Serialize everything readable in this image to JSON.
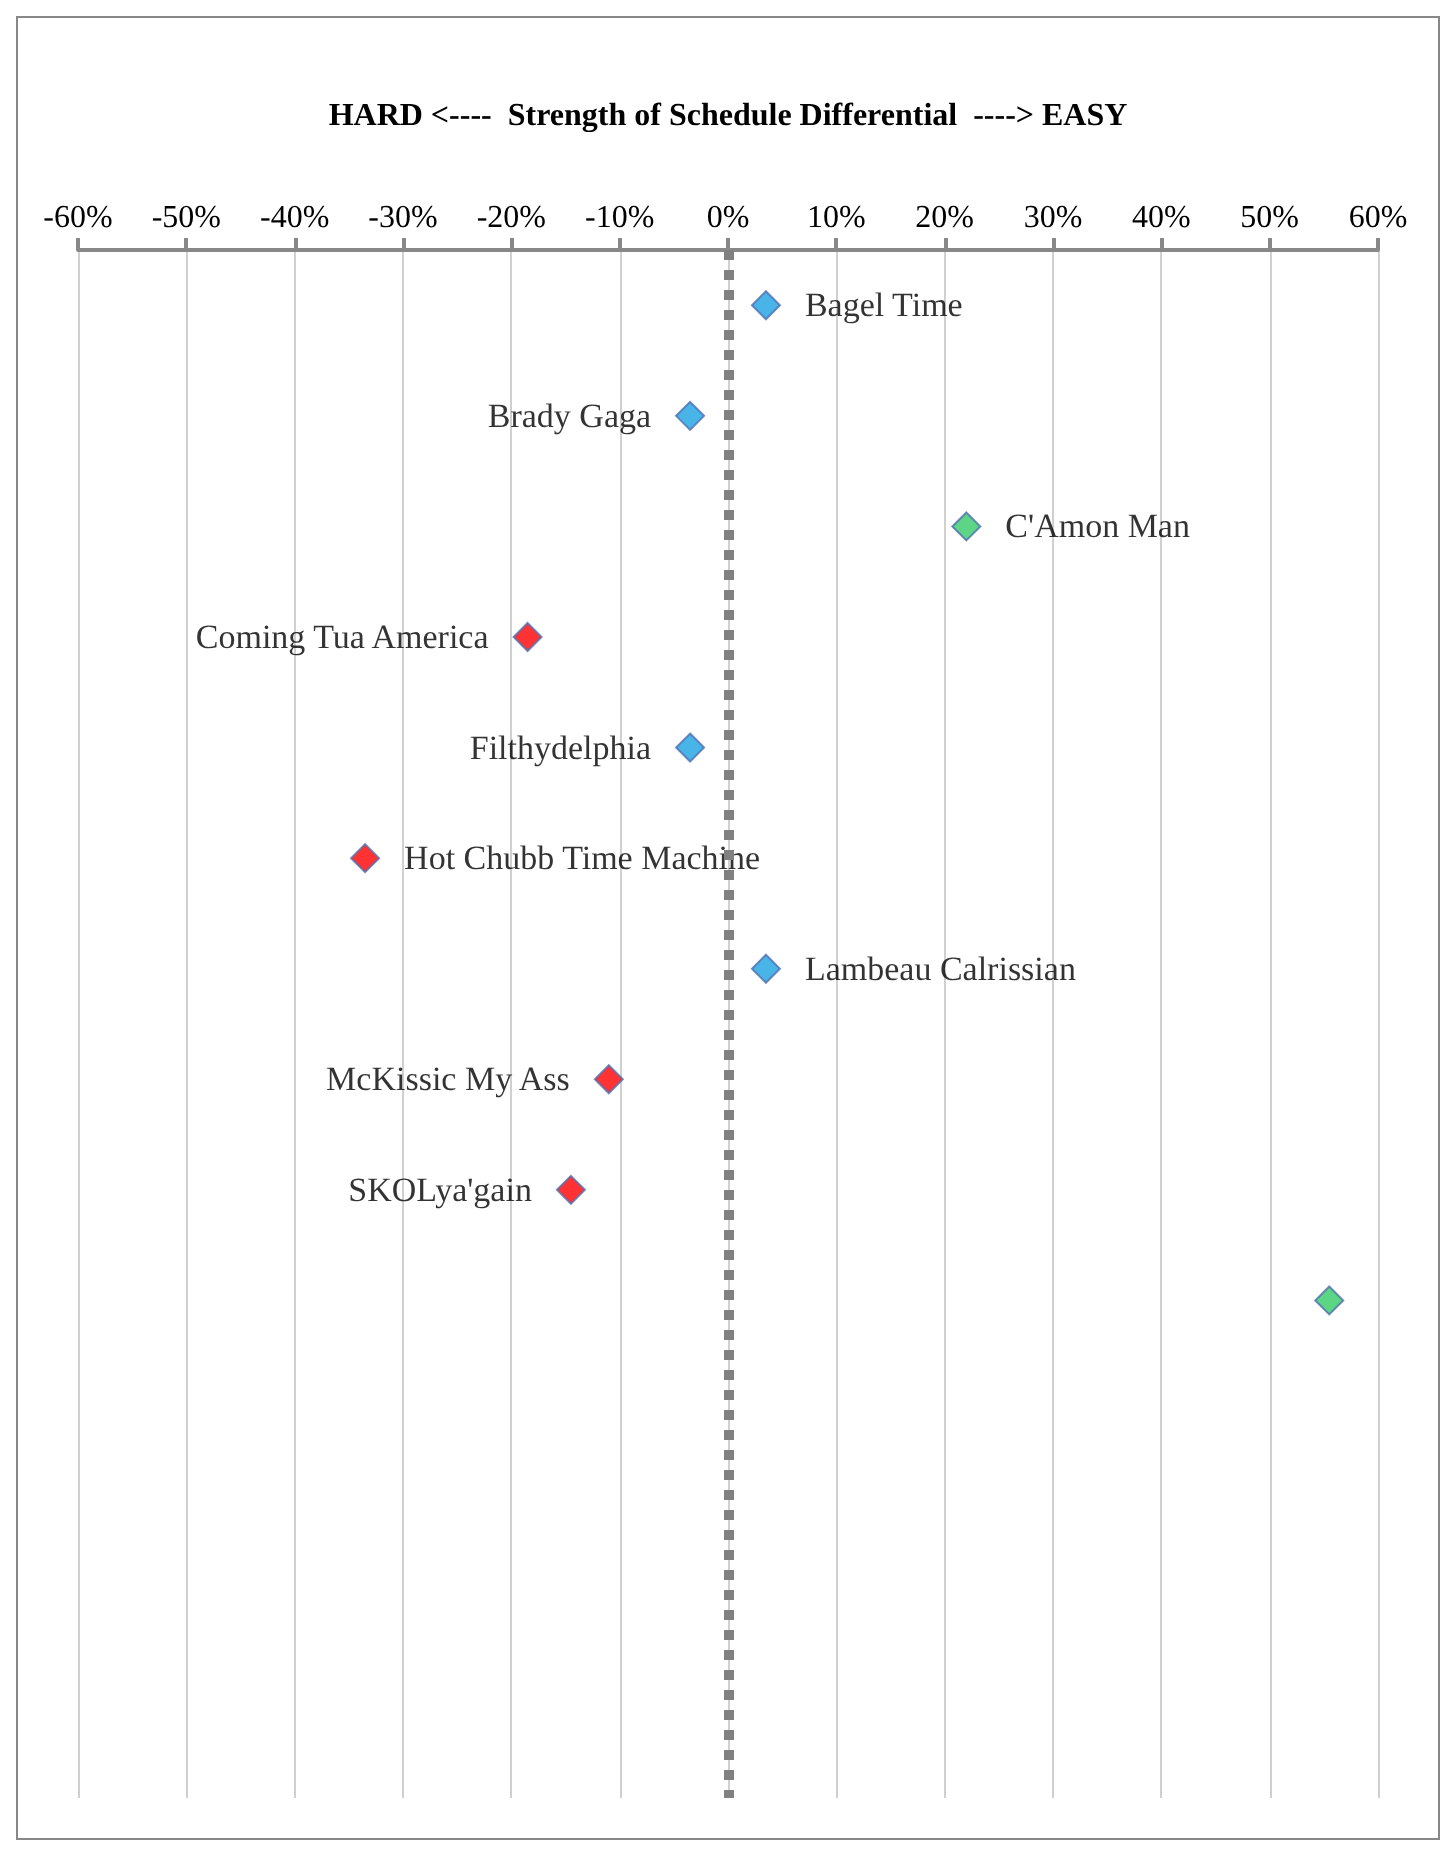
{
  "chart_data": {
    "type": "scatter",
    "orientation": "horizontal",
    "title": "HARD <----  Strength of Schedule Differential  ----> EASY",
    "categories": [
      "Bagel Time",
      "Brady Gaga",
      "C'Amon Man",
      "Coming Tua America",
      "Filthydelphia",
      "Hot Chubb Time Machine",
      "Lambeau Calrissian",
      "McKissic My Ass",
      "SKOLya'gain",
      null,
      null,
      null,
      null,
      null
    ],
    "values": [
      3.5,
      -3.5,
      22,
      -18.5,
      -3.5,
      -33.5,
      3.5,
      -11,
      -14.5,
      55.5,
      null,
      null,
      null,
      null
    ],
    "colors": [
      "#1ba1e2",
      "#1ba1e2",
      "#33cc66",
      "#ff0000",
      "#1ba1e2",
      "#ff0000",
      "#1ba1e2",
      "#ff0000",
      "#ff0000",
      "#33cc66",
      null,
      null,
      null,
      null
    ],
    "xlim": [
      -60,
      60
    ],
    "xticks": [
      {
        "value": -60,
        "label": "-60%"
      },
      {
        "value": -50,
        "label": "-50%"
      },
      {
        "value": -40,
        "label": "-40%"
      },
      {
        "value": -30,
        "label": "-30%"
      },
      {
        "value": -20,
        "label": "-20%"
      },
      {
        "value": -10,
        "label": "-10%"
      },
      {
        "value": 0,
        "label": "0%"
      },
      {
        "value": 10,
        "label": "10%"
      },
      {
        "value": 20,
        "label": "20%"
      },
      {
        "value": 30,
        "label": "30%"
      },
      {
        "value": 40,
        "label": "40%"
      },
      {
        "value": 50,
        "label": "50%"
      },
      {
        "value": 60,
        "label": "60%"
      }
    ],
    "grid": "x",
    "marker": "diamond",
    "tick_labels": "x",
    "ref_lines": [
      {
        "axis": "x",
        "value": 0,
        "color": "#808080",
        "line_style": "dotted"
      }
    ]
  }
}
